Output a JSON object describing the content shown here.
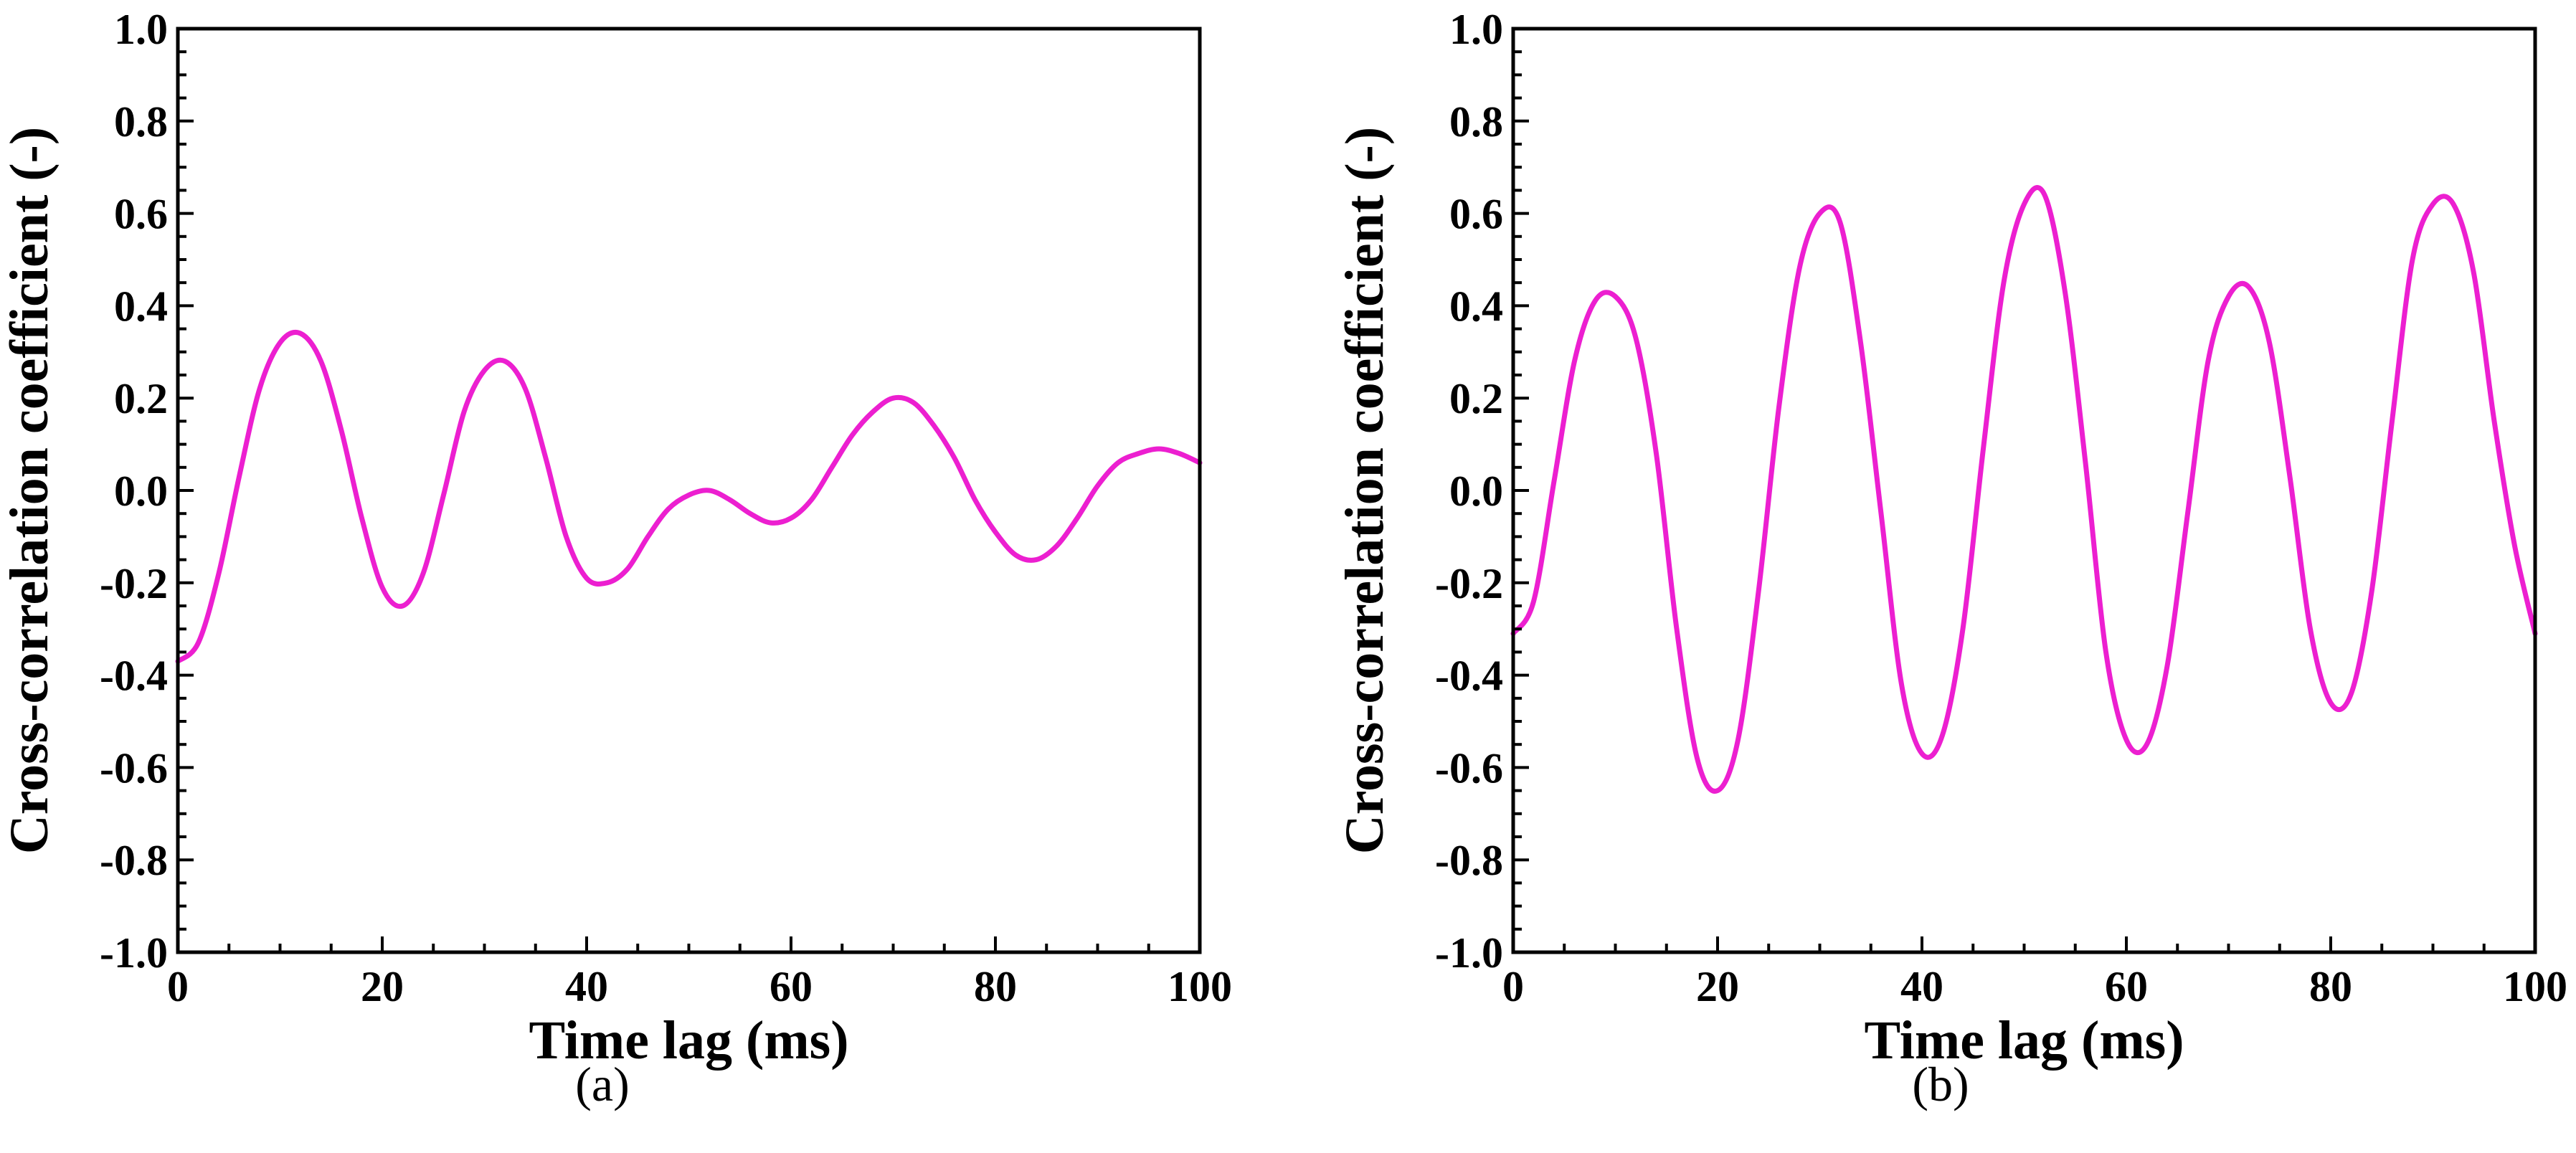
{
  "figure": {
    "captions": [
      "(a)",
      "(b)"
    ]
  },
  "colors": {
    "curve": "#ec1fd0",
    "axis": "#000000",
    "background": "#ffffff"
  },
  "chart_data": [
    {
      "type": "line",
      "panel": "(a)",
      "title": "",
      "xlabel": "Time lag (ms)",
      "ylabel": "Cross-correlation coefficient (-)",
      "xlim": [
        0,
        100
      ],
      "ylim": [
        -1.0,
        1.0
      ],
      "xticks": [
        0,
        20,
        40,
        60,
        80,
        100
      ],
      "xtick_labels": [
        "0",
        "20",
        "40",
        "60",
        "80",
        "100"
      ],
      "yticks": [
        1.0,
        0.8,
        0.6,
        0.4,
        0.2,
        0.0,
        -0.2,
        -0.4,
        -0.6,
        -0.8,
        -1.0
      ],
      "ytick_labels": [
        "1.0",
        "0.8",
        "0.6",
        "0.4",
        "0.2",
        "0.0",
        "-0.2",
        "-0.4",
        "-0.6",
        "-0.8",
        "-1.0"
      ],
      "grid": false,
      "series": [
        {
          "name": "cross-correlation",
          "x": [
            0,
            2,
            4,
            6,
            8,
            10,
            12,
            14,
            16,
            18,
            20,
            22,
            24,
            26,
            28,
            30,
            32,
            34,
            36,
            38,
            40,
            42,
            44,
            46,
            48,
            50,
            52,
            54,
            56,
            58,
            60,
            62,
            64,
            66,
            68,
            70,
            72,
            74,
            76,
            78,
            80,
            82,
            84,
            86,
            88,
            90,
            92,
            94,
            96,
            98,
            100
          ],
          "y": [
            -0.37,
            -0.33,
            -0.18,
            0.03,
            0.22,
            0.32,
            0.34,
            0.28,
            0.13,
            -0.06,
            -0.21,
            -0.25,
            -0.18,
            -0.01,
            0.17,
            0.26,
            0.28,
            0.22,
            0.07,
            -0.1,
            -0.19,
            -0.2,
            -0.17,
            -0.1,
            -0.04,
            -0.01,
            0.0,
            -0.02,
            -0.05,
            -0.07,
            -0.06,
            -0.02,
            0.05,
            0.12,
            0.17,
            0.2,
            0.19,
            0.14,
            0.07,
            -0.02,
            -0.09,
            -0.14,
            -0.15,
            -0.12,
            -0.06,
            0.01,
            0.06,
            0.08,
            0.09,
            0.08,
            0.06
          ]
        }
      ]
    },
    {
      "type": "line",
      "panel": "(b)",
      "title": "",
      "xlabel": "Time lag (ms)",
      "ylabel": "Cross-correlation coefficient (-)",
      "xlim": [
        0,
        100
      ],
      "ylim": [
        -1.0,
        1.0
      ],
      "xticks": [
        0,
        20,
        40,
        60,
        80,
        100
      ],
      "xtick_labels": [
        "0",
        "20",
        "40",
        "60",
        "80",
        "100"
      ],
      "yticks": [
        1.0,
        0.8,
        0.6,
        0.4,
        0.2,
        0.0,
        -0.2,
        -0.4,
        -0.6,
        -0.8,
        -1.0
      ],
      "ytick_labels": [
        "1.0",
        "0.8",
        "0.6",
        "0.4",
        "0.2",
        "0.0",
        "-0.2",
        "-0.4",
        "-0.6",
        "-0.8",
        "-1.0"
      ],
      "grid": false,
      "series": [
        {
          "name": "cross-correlation",
          "x": [
            0,
            2,
            4,
            6,
            8,
            10,
            12,
            14,
            16,
            18,
            20,
            22,
            24,
            26,
            28,
            30,
            32,
            34,
            36,
            38,
            40,
            42,
            44,
            46,
            48,
            50,
            52,
            54,
            56,
            58,
            60,
            62,
            64,
            66,
            68,
            70,
            72,
            74,
            76,
            78,
            80,
            82,
            84,
            86,
            88,
            90,
            92,
            94,
            96,
            98,
            100
          ],
          "y": [
            -0.31,
            -0.24,
            0.02,
            0.28,
            0.41,
            0.42,
            0.33,
            0.08,
            -0.3,
            -0.58,
            -0.65,
            -0.54,
            -0.22,
            0.18,
            0.48,
            0.6,
            0.58,
            0.32,
            -0.05,
            -0.42,
            -0.57,
            -0.53,
            -0.3,
            0.09,
            0.45,
            0.62,
            0.64,
            0.43,
            0.06,
            -0.35,
            -0.54,
            -0.55,
            -0.38,
            -0.05,
            0.28,
            0.42,
            0.44,
            0.32,
            0.03,
            -0.3,
            -0.46,
            -0.44,
            -0.22,
            0.15,
            0.5,
            0.62,
            0.62,
            0.47,
            0.15,
            -0.12,
            -0.31
          ]
        }
      ]
    }
  ]
}
